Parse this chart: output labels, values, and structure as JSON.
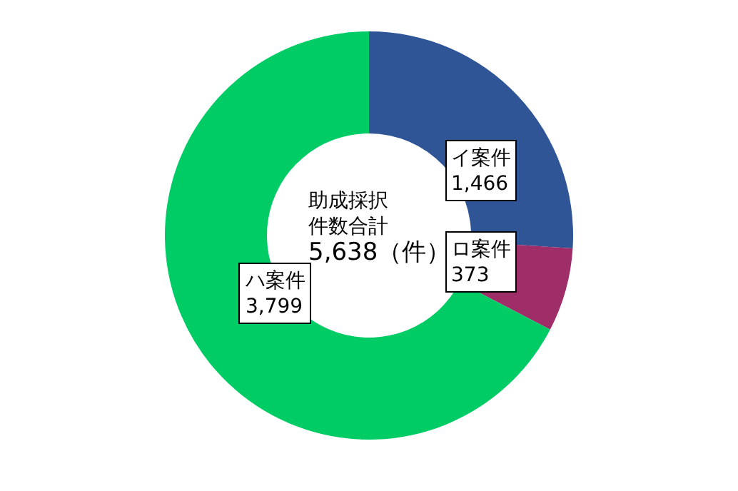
{
  "chart_data": {
    "type": "donut",
    "categories": [
      "イ案件",
      "ロ案件",
      "ハ案件"
    ],
    "values": [
      1466,
      373,
      3799
    ],
    "value_labels": [
      "1,466",
      "373",
      "3,799"
    ],
    "colors": [
      "#2f5597",
      "#9e2d68",
      "#00cc66"
    ],
    "annotations": [
      "助成採択",
      "件数合計",
      "5,638（件）"
    ],
    "legend": false
  }
}
